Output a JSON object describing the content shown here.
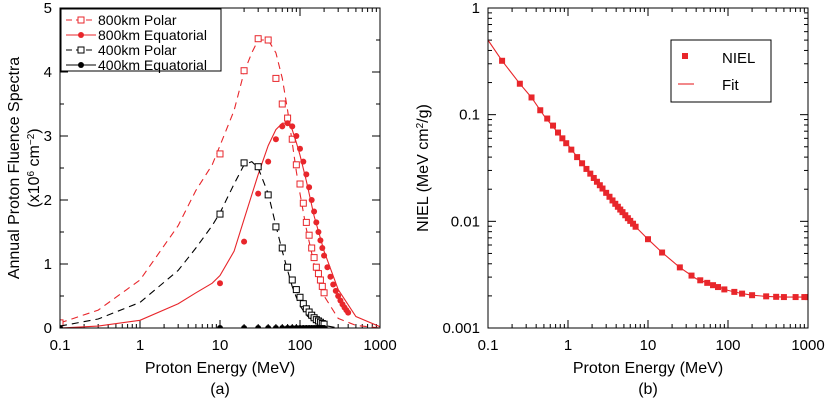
{
  "chart_data": [
    {
      "type": "line",
      "panel_label": "(a)",
      "xlabel": "Proton Energy (MeV)",
      "ylabel": "Annual Proton Fluence Spectra",
      "ylabel_sub": "(x10",
      "ylabel_exp": "6",
      "ylabel_tail": " cm",
      "ylabel_exp2": "−2",
      "ylabel_close": ")",
      "xscale": "log",
      "xlim": [
        0.1,
        1000
      ],
      "ylim": [
        0,
        5
      ],
      "xticks": [
        "0.1",
        "1",
        "10",
        "100",
        "1000"
      ],
      "yticks": [
        "0",
        "1",
        "2",
        "3",
        "4",
        "5"
      ],
      "legend_position": "top-left",
      "series": [
        {
          "name": "800km Polar",
          "color": "#e8262b",
          "line": "dashed",
          "marker": "open-square",
          "x": [
            0.1,
            0.3,
            1,
            3,
            5,
            8,
            10,
            15,
            20,
            25,
            30,
            40,
            50,
            60,
            70,
            80,
            90,
            100,
            120,
            150,
            200,
            300,
            500,
            1000
          ],
          "y": [
            0.08,
            0.28,
            0.75,
            1.6,
            2.15,
            2.55,
            2.85,
            3.4,
            4.0,
            4.3,
            4.5,
            4.5,
            4.3,
            3.9,
            3.4,
            2.9,
            2.45,
            2.1,
            1.55,
            1.0,
            0.5,
            0.15,
            0.04,
            0.0
          ],
          "markers_x": [
            0.1,
            10,
            20,
            30,
            40,
            50,
            60,
            70,
            80,
            90,
            100,
            110,
            120,
            130,
            140,
            150,
            160,
            170,
            180,
            190,
            200
          ],
          "markers_y": [
            0.08,
            2.72,
            4.02,
            4.52,
            4.5,
            3.9,
            3.5,
            3.28,
            2.95,
            2.55,
            2.25,
            1.95,
            1.65,
            1.45,
            1.25,
            1.1,
            0.95,
            0.85,
            0.75,
            0.65,
            0.55
          ]
        },
        {
          "name": "800km Equatorial",
          "color": "#e8262b",
          "line": "solid",
          "marker": "filled-circle",
          "x": [
            0.1,
            0.3,
            1,
            3,
            5,
            8,
            10,
            15,
            20,
            30,
            40,
            50,
            60,
            70,
            80,
            90,
            100,
            120,
            150,
            200,
            300,
            500,
            1000
          ],
          "y": [
            0.0,
            0.03,
            0.12,
            0.38,
            0.55,
            0.7,
            0.82,
            1.2,
            1.7,
            2.4,
            2.85,
            3.1,
            3.2,
            3.2,
            3.1,
            2.9,
            2.7,
            2.3,
            1.75,
            1.2,
            0.6,
            0.18,
            0.02
          ],
          "markers_x": [
            10,
            20,
            30,
            40,
            50,
            60,
            70,
            80,
            90,
            100,
            110,
            120,
            130,
            140,
            150,
            160,
            170,
            180,
            190,
            200,
            220,
            240,
            260,
            280,
            300,
            320,
            340,
            360,
            380,
            400
          ],
          "markers_y": [
            0.7,
            1.35,
            2.1,
            2.6,
            2.95,
            3.15,
            3.2,
            3.15,
            3.0,
            2.8,
            2.6,
            2.4,
            2.2,
            2.0,
            1.82,
            1.65,
            1.5,
            1.37,
            1.25,
            1.13,
            0.95,
            0.8,
            0.68,
            0.58,
            0.5,
            0.43,
            0.37,
            0.32,
            0.28,
            0.24
          ]
        },
        {
          "name": "400km Polar",
          "color": "#000000",
          "line": "dashed",
          "marker": "open-square",
          "x": [
            0.1,
            0.3,
            1,
            3,
            5,
            8,
            10,
            15,
            20,
            25,
            30,
            40,
            50,
            60,
            70,
            80,
            90,
            100,
            120,
            150,
            200,
            300
          ],
          "y": [
            0.03,
            0.14,
            0.4,
            0.9,
            1.25,
            1.6,
            1.8,
            2.25,
            2.55,
            2.6,
            2.5,
            2.1,
            1.6,
            1.2,
            0.9,
            0.65,
            0.48,
            0.35,
            0.2,
            0.1,
            0.04,
            0.0
          ],
          "markers_x": [
            10,
            20,
            30,
            40,
            50,
            60,
            70,
            80,
            90,
            100,
            110,
            120,
            130,
            140,
            150,
            160,
            170,
            180,
            190,
            200
          ],
          "markers_y": [
            1.78,
            2.58,
            2.52,
            2.08,
            1.58,
            1.25,
            0.95,
            0.75,
            0.6,
            0.48,
            0.38,
            0.3,
            0.25,
            0.2,
            0.16,
            0.13,
            0.11,
            0.09,
            0.07,
            0.06
          ]
        },
        {
          "name": "400km Equatorial",
          "color": "#000000",
          "line": "solid",
          "marker": "filled-circle",
          "x": [
            0.1,
            1000
          ],
          "y": [
            0.0,
            0.0
          ],
          "markers_x": [
            0.1,
            10,
            20,
            30,
            40,
            50,
            60,
            70,
            80,
            90,
            100,
            110,
            120,
            130,
            140,
            150,
            160,
            170,
            180,
            190,
            200
          ],
          "markers_y": [
            0,
            0,
            0,
            0,
            0,
            0,
            0,
            0,
            0,
            0,
            0,
            0,
            0,
            0,
            0,
            0,
            0,
            0,
            0,
            0,
            0
          ]
        }
      ]
    },
    {
      "type": "scatter",
      "panel_label": "(b)",
      "xlabel": "Proton Energy (MeV)",
      "ylabel": "NIEL (MeV cm",
      "ylabel_exp": "2",
      "ylabel_tail": "/g)",
      "xscale": "log",
      "yscale": "log",
      "xlim": [
        0.1,
        1000
      ],
      "ylim": [
        0.001,
        1
      ],
      "xticks": [
        "0.1",
        "1",
        "10",
        "100",
        "1000"
      ],
      "yticks": [
        "0.001",
        "0.01",
        "0.1",
        "1"
      ],
      "legend_position": "top-right",
      "series": [
        {
          "name": "NIEL",
          "color": "#e8262b",
          "marker": "filled-square",
          "x": [
            0.15,
            0.25,
            0.35,
            0.45,
            0.55,
            0.65,
            0.75,
            0.85,
            0.95,
            1.1,
            1.3,
            1.5,
            1.7,
            1.9,
            2.1,
            2.3,
            2.5,
            2.7,
            3.0,
            3.3,
            3.6,
            3.9,
            4.2,
            4.5,
            4.8,
            5.2,
            5.6,
            6.0,
            6.5,
            7.0,
            10,
            15,
            25,
            35,
            45,
            55,
            65,
            75,
            90,
            120,
            150,
            200,
            300,
            400,
            500,
            700,
            900,
            1000
          ],
          "y": [
            0.32,
            0.195,
            0.145,
            0.11,
            0.092,
            0.079,
            0.068,
            0.06,
            0.054,
            0.047,
            0.04,
            0.035,
            0.031,
            0.028,
            0.0255,
            0.0235,
            0.0218,
            0.0203,
            0.0185,
            0.017,
            0.0157,
            0.0146,
            0.0137,
            0.0129,
            0.0122,
            0.0114,
            0.0107,
            0.0101,
            0.0095,
            0.0089,
            0.0068,
            0.0051,
            0.0037,
            0.0031,
            0.0028,
            0.00265,
            0.00252,
            0.00242,
            0.0023,
            0.00218,
            0.0021,
            0.00203,
            0.00198,
            0.00196,
            0.00195,
            0.00195,
            0.00195,
            0.00195
          ]
        },
        {
          "name": "Fit",
          "color": "#e8262b",
          "line": "solid",
          "x": [
            0.1,
            0.15,
            0.25,
            0.35,
            0.5,
            0.7,
            1,
            1.5,
            2,
            3,
            5,
            7,
            10,
            15,
            25,
            40,
            60,
            100,
            150,
            200,
            300,
            500,
            1000
          ],
          "y": [
            0.5,
            0.32,
            0.195,
            0.145,
            0.098,
            0.072,
            0.052,
            0.035,
            0.027,
            0.0185,
            0.0118,
            0.0089,
            0.0068,
            0.0051,
            0.0037,
            0.0029,
            0.00258,
            0.00225,
            0.0021,
            0.00203,
            0.00198,
            0.00195,
            0.00195
          ]
        }
      ]
    }
  ]
}
